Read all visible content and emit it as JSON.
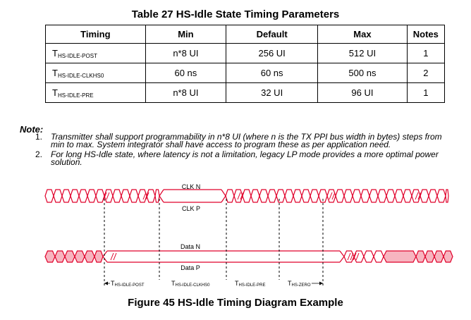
{
  "table": {
    "title": "Table 27 HS-Idle State Timing Parameters",
    "headers": [
      "Timing",
      "Min",
      "Default",
      "Max",
      "Notes"
    ],
    "rows": [
      {
        "t": "T",
        "sub": "HS-IDLE-POST",
        "min": "n*8 UI",
        "default": "256 UI",
        "max": "512 UI",
        "notes": "1"
      },
      {
        "t": "T",
        "sub": "HS-IDLE-CLKHS0",
        "min": "60 ns",
        "default": "60 ns",
        "max": "500 ns",
        "notes": "2"
      },
      {
        "t": "T",
        "sub": "HS-IDLE-PRE",
        "min": "n*8 UI",
        "default": "32 UI",
        "max": "96 UI",
        "notes": "1"
      }
    ]
  },
  "notes": {
    "title": "Note:",
    "items": [
      {
        "num": "1.",
        "text": "Transmitter shall support programmability in n*8 UI (where n is the TX PPI bus width in bytes) steps from min to max. System integrator shall have access to program these as per application need."
      },
      {
        "num": "2.",
        "text": "For long HS-Idle state, where latency is not a limitation, legacy LP mode provides a more optimal power solution."
      }
    ]
  },
  "diagram": {
    "clk_n": "CLK N",
    "clk_p": "CLK P",
    "data_n": "Data N",
    "data_p": "Data P",
    "intervals": [
      {
        "t": "T",
        "sub": "HS-IDLE-POST"
      },
      {
        "t": "T",
        "sub": "HS-IDLE-CLKHS0"
      },
      {
        "t": "T",
        "sub": "HS-IDLE-PRE"
      },
      {
        "t": "T",
        "sub": "HS-ZERO"
      }
    ],
    "accent_color": "#e0002a",
    "fill_color": "#f7b5c0"
  },
  "figure": {
    "caption": "Figure 45 HS-Idle Timing Diagram Example"
  }
}
